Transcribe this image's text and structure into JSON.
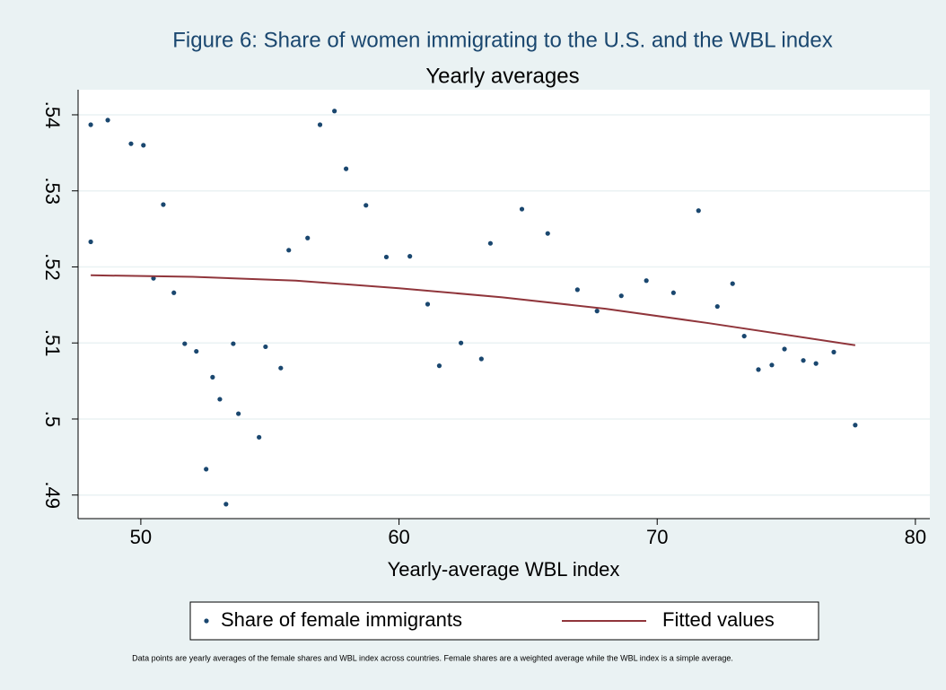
{
  "chart_data": {
    "type": "scatter",
    "title": "Figure 6: Share of women immigrating to the U.S. and the WBL index",
    "subtitle": "Yearly averages",
    "xlabel": "Yearly-average WBL index",
    "note": "Data points are yearly averages of the female shares and WBL index across countries. Female shares are a weighted average while the WBL index is a simple average.",
    "xlim": [
      47.57,
      80.56
    ],
    "ylim": [
      0.4869,
      0.5433
    ],
    "xticks": [
      50,
      60,
      70,
      80
    ],
    "yticks": [
      {
        "value": 0.49,
        "label": ".49"
      },
      {
        "value": 0.5,
        "label": ".5"
      },
      {
        "value": 0.51,
        "label": ".51"
      },
      {
        "value": 0.52,
        "label": ".52"
      },
      {
        "value": 0.53,
        "label": ".53"
      },
      {
        "value": 0.54,
        "label": ".54"
      }
    ],
    "grid": true,
    "legend": "bottom",
    "series": [
      {
        "name": "Share of female immigrants",
        "type": "scatter",
        "color": "#1a476f",
        "x": [
          48.06,
          48.06,
          48.72,
          49.62,
          50.1,
          50.87,
          50.49,
          51.28,
          51.7,
          52.15,
          52.53,
          52.78,
          53.06,
          53.58,
          53.78,
          53.3,
          54.58,
          54.83,
          55.42,
          55.73,
          56.46,
          56.94,
          57.5,
          57.95,
          58.72,
          59.51,
          60.42,
          61.11,
          61.56,
          62.4,
          63.19,
          63.54,
          64.76,
          65.76,
          66.91,
          67.67,
          68.61,
          69.58,
          70.63,
          71.6,
          72.33,
          72.92,
          73.37,
          73.92,
          74.44,
          74.93,
          75.66,
          76.15,
          76.84,
          77.67
        ],
        "values": [
          0.5387,
          0.5233,
          0.5393,
          0.5362,
          0.536,
          0.5282,
          0.5185,
          0.5166,
          0.5099,
          0.5089,
          0.4934,
          0.5055,
          0.5026,
          0.5099,
          0.5007,
          0.4888,
          0.4976,
          0.5095,
          0.5067,
          0.5222,
          0.5238,
          0.5387,
          0.5405,
          0.5329,
          0.5281,
          0.5213,
          0.5214,
          0.5151,
          0.507,
          0.51,
          0.5079,
          0.5231,
          0.5276,
          0.5244,
          0.517,
          0.5142,
          0.5162,
          0.5182,
          0.5166,
          0.5274,
          0.5148,
          0.5178,
          0.5109,
          0.5065,
          0.5071,
          0.5092,
          0.5077,
          0.5073,
          0.5088,
          0.4992
        ]
      },
      {
        "name": "Fitted values",
        "type": "line",
        "color": "#90353b",
        "x": [
          48.06,
          52,
          56,
          60,
          64,
          68,
          72,
          77.67
        ],
        "values": [
          0.5189,
          0.5187,
          0.5182,
          0.5172,
          0.516,
          0.5145,
          0.5126,
          0.5097
        ]
      }
    ]
  }
}
